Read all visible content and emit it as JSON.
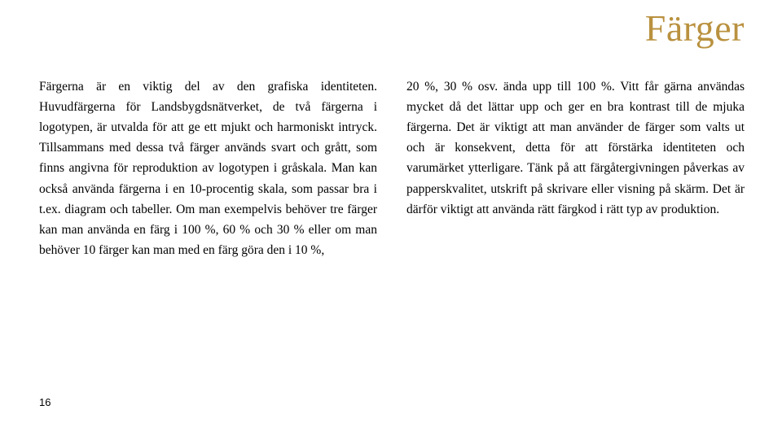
{
  "title": {
    "text": "Färger",
    "color": "#b9913f",
    "fontsize": 46
  },
  "body": {
    "fontsize": 15.5,
    "lineheight": 1.62,
    "textcolor": "#000000",
    "column1": "Färgerna är en viktig del av den grafiska identiteten. Huvudfärgerna för Landsbygdsnätverket, de två färgerna i logotypen, är utvalda för att ge ett mjukt och harmoniskt intryck. Tillsammans med dessa två färger används svart och grått, som finns angivna för reproduktion av logotypen i gråskala. Man kan också använda färgerna i en 10-procentig skala, som passar bra i t.ex. diagram och tabeller. Om man exempelvis behöver tre färger kan man använda en färg i 100 %, 60 % och 30 % eller om man behöver 10 färger kan man med en färg göra den i 10 %,",
    "column2": "20 %, 30 % osv. ända upp till 100 %. Vitt får gärna användas mycket då det lättar upp och ger en bra kontrast till de mjuka färgerna. Det är viktigt att man använder de färger som valts ut och är konsekvent, detta för att förstärka identiteten och varumärket ytterligare. Tänk på att färgåtergivningen påverkas av papperskvalitet, utskrift på skrivare eller visning på skärm. Det är därför viktigt att använda rätt färgkod i rätt typ av produktion."
  },
  "page_number": "16",
  "background_color": "#ffffff"
}
